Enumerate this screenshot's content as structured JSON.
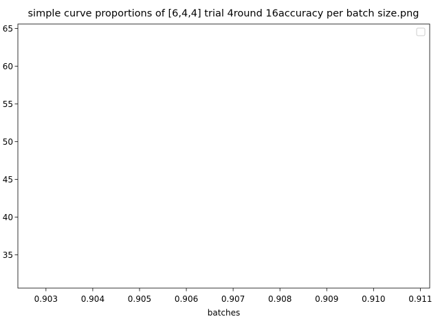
{
  "chart_data": {
    "type": "line",
    "title": "simple curve proportions of [6,4,4] trial 4round 16accuracy per batch size.png",
    "xlabel": "batches",
    "ylabel": "",
    "xlim": [
      0.9024,
      0.9112
    ],
    "ylim": [
      30.6,
      65.6
    ],
    "x_ticks": [
      0.903,
      0.904,
      0.905,
      0.906,
      0.907,
      0.908,
      0.909,
      0.91,
      0.911
    ],
    "y_ticks": [
      35,
      40,
      45,
      50,
      55,
      60,
      65
    ],
    "x_tick_labels": [
      "0.903",
      "0.904",
      "0.905",
      "0.906",
      "0.907",
      "0.908",
      "0.909",
      "0.910",
      "0.911"
    ],
    "y_tick_labels": [
      "35",
      "40",
      "45",
      "50",
      "55",
      "60",
      "65"
    ],
    "y_tick_labels_visible": [
      "35",
      "40",
      "45",
      "50",
      "55",
      "60",
      "65"
    ],
    "series": [],
    "legend": {
      "placement": "top-right",
      "entries": []
    },
    "grid": false
  }
}
